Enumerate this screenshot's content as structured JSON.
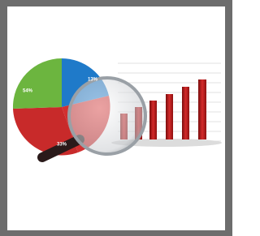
{
  "pie_labels": [
    "54%",
    "13%",
    "33%"
  ]
}
